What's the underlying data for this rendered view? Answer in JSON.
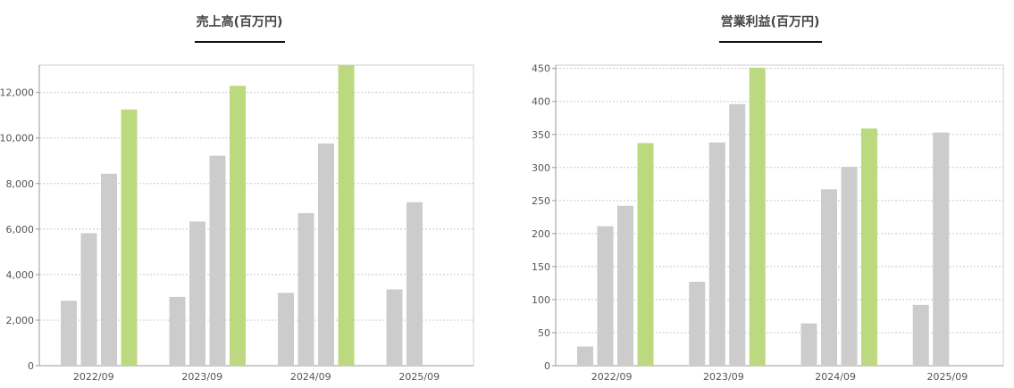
{
  "chart_data": [
    {
      "type": "bar",
      "title": "売上高(百万円)",
      "categories": [
        "2022/09",
        "2023/09",
        "2024/09",
        "2025/09"
      ],
      "series": [
        {
          "values": [
            2850,
            3020,
            3200,
            3350
          ],
          "color": "#cccccc"
        },
        {
          "values": [
            5820,
            6330,
            6700,
            7180
          ],
          "color": "#cccccc"
        },
        {
          "values": [
            8430,
            9220,
            9760,
            null
          ],
          "color": "#cccccc"
        },
        {
          "values": [
            11250,
            12290,
            13200,
            null
          ],
          "color": "#bdd97f"
        }
      ],
      "ylim": [
        0,
        13200
      ],
      "yticks": [
        0,
        2000,
        4000,
        6000,
        8000,
        10000,
        12000
      ],
      "ytick_labels": [
        "0",
        "2,000",
        "4,000",
        "6,000",
        "8,000",
        "10,000",
        "12,000"
      ],
      "grid": true
    },
    {
      "type": "bar",
      "title": "営業利益(百万円)",
      "categories": [
        "2022/09",
        "2023/09",
        "2024/09",
        "2025/09"
      ],
      "series": [
        {
          "values": [
            29,
            127,
            64,
            92
          ],
          "color": "#cccccc"
        },
        {
          "values": [
            211,
            338,
            267,
            353
          ],
          "color": "#cccccc"
        },
        {
          "values": [
            242,
            396,
            301,
            null
          ],
          "color": "#cccccc"
        },
        {
          "values": [
            337,
            451,
            359,
            null
          ],
          "color": "#bdd97f"
        }
      ],
      "ylim": [
        0,
        455
      ],
      "yticks": [
        0,
        50,
        100,
        150,
        200,
        250,
        300,
        350,
        400,
        450
      ],
      "ytick_labels": [
        "0",
        "50",
        "100",
        "150",
        "200",
        "250",
        "300",
        "350",
        "400",
        "450"
      ],
      "grid": true
    }
  ]
}
